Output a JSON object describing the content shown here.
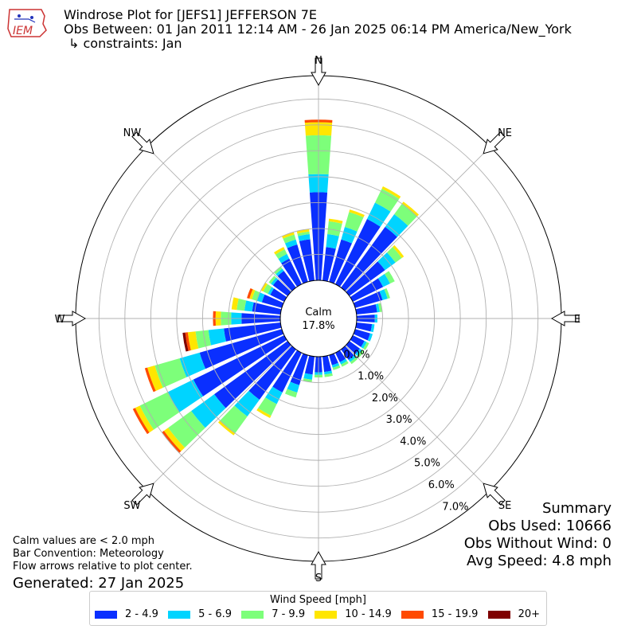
{
  "header": {
    "title": "Windrose Plot for [JEFS1] JEFFERSON 7E",
    "period": "Obs Between: 01 Jan 2011 12:14 AM - 26 Jan 2025 06:14 PM America/New_York",
    "constraints": "↳ constraints: Jan"
  },
  "logo": {
    "text": "IEM",
    "icon": "iem-logo-icon"
  },
  "summary": {
    "title": "Summary",
    "obs_used": "Obs Used: 10666",
    "obs_without_wind": "Obs Without Wind: 0",
    "avg_speed": "Avg Speed: 4.8 mph"
  },
  "notes": {
    "calm_note": "Calm values are < 2.0 mph",
    "bar_convention": "Bar Convention: Meteorology",
    "flow_arrows": "Flow arrows relative to plot center.",
    "generated": "Generated: 27 Jan 2025"
  },
  "legend": {
    "title": "Wind Speed [mph]",
    "items": [
      {
        "label": "2 - 4.9",
        "color": "#0a2fff"
      },
      {
        "label": "5 - 6.9",
        "color": "#00d4ff"
      },
      {
        "label": "7 - 9.9",
        "color": "#7dff7a"
      },
      {
        "label": "10 - 14.9",
        "color": "#ffe600"
      },
      {
        "label": "15 - 19.9",
        "color": "#ff4a00"
      },
      {
        "label": "20+",
        "color": "#7f0000"
      }
    ]
  },
  "chart_data": {
    "type": "windrose",
    "calm_label": "Calm",
    "calm_value": "17.8%",
    "direction_labels": [
      "N",
      "NE",
      "E",
      "SE",
      "S",
      "SW",
      "W",
      "NW"
    ],
    "radial_ticks": [
      "0.0%",
      "1.0%",
      "2.0%",
      "3.0%",
      "4.0%",
      "5.0%",
      "6.0%",
      "7.0%"
    ],
    "rmax": 7.9,
    "bins": [
      "2 - 4.9",
      "5 - 6.9",
      "7 - 9.9",
      "10 - 14.9",
      "15 - 19.9",
      "20+"
    ],
    "bin_colors": [
      "#0a2fff",
      "#00d4ff",
      "#7dff7a",
      "#ffe600",
      "#ff4a00",
      "#7f0000"
    ],
    "directions_deg": [
      0,
      10,
      20,
      30,
      40,
      50,
      60,
      70,
      80,
      90,
      100,
      110,
      120,
      130,
      140,
      150,
      160,
      170,
      180,
      190,
      200,
      210,
      220,
      230,
      240,
      250,
      260,
      270,
      280,
      290,
      300,
      310,
      320,
      330,
      340,
      350
    ],
    "values": [
      [
        3.4,
        0.7,
        1.5,
        0.5,
        0.1,
        0.0
      ],
      [
        1.3,
        0.5,
        0.5,
        0.1,
        0.0,
        0.0
      ],
      [
        1.7,
        0.5,
        0.6,
        0.1,
        0.0,
        0.0
      ],
      [
        2.8,
        0.7,
        0.6,
        0.1,
        0.0,
        0.0
      ],
      [
        2.9,
        0.6,
        0.5,
        0.1,
        0.0,
        0.0
      ],
      [
        1.7,
        0.5,
        0.3,
        0.1,
        0.0,
        0.0
      ],
      [
        1.3,
        0.3,
        0.2,
        0.0,
        0.0,
        0.0
      ],
      [
        1.1,
        0.2,
        0.1,
        0.0,
        0.0,
        0.0
      ],
      [
        0.8,
        0.1,
        0.1,
        0.0,
        0.0,
        0.0
      ],
      [
        0.7,
        0.1,
        0.0,
        0.0,
        0.0,
        0.0
      ],
      [
        0.6,
        0.1,
        0.0,
        0.0,
        0.0,
        0.0
      ],
      [
        0.6,
        0.1,
        0.0,
        0.0,
        0.0,
        0.0
      ],
      [
        0.5,
        0.1,
        0.1,
        0.0,
        0.0,
        0.0
      ],
      [
        0.5,
        0.1,
        0.1,
        0.0,
        0.0,
        0.0
      ],
      [
        0.5,
        0.1,
        0.1,
        0.0,
        0.0,
        0.0
      ],
      [
        0.4,
        0.1,
        0.1,
        0.0,
        0.0,
        0.0
      ],
      [
        0.4,
        0.1,
        0.1,
        0.0,
        0.0,
        0.0
      ],
      [
        0.6,
        0.1,
        0.1,
        0.0,
        0.0,
        0.0
      ],
      [
        0.6,
        0.1,
        0.1,
        0.0,
        0.0,
        0.0
      ],
      [
        0.7,
        0.2,
        0.1,
        0.0,
        0.0,
        0.0
      ],
      [
        1.2,
        0.3,
        0.2,
        0.0,
        0.0,
        0.0
      ],
      [
        1.7,
        0.5,
        0.5,
        0.1,
        0.0,
        0.0
      ],
      [
        2.4,
        0.8,
        0.8,
        0.1,
        0.0,
        0.0
      ],
      [
        3.5,
        1.1,
        1.1,
        0.2,
        0.1,
        0.0
      ],
      [
        3.9,
        1.1,
        1.2,
        0.2,
        0.1,
        0.0
      ],
      [
        3.3,
        0.8,
        1.0,
        0.3,
        0.1,
        0.0
      ],
      [
        2.2,
        0.6,
        0.5,
        0.3,
        0.1,
        0.1
      ],
      [
        1.5,
        0.4,
        0.4,
        0.2,
        0.1,
        0.0
      ],
      [
        1.1,
        0.3,
        0.3,
        0.2,
        0.0,
        0.0
      ],
      [
        0.8,
        0.2,
        0.2,
        0.1,
        0.1,
        0.0
      ],
      [
        0.6,
        0.1,
        0.2,
        0.1,
        0.0,
        0.0
      ],
      [
        0.7,
        0.1,
        0.1,
        0.0,
        0.0,
        0.0
      ],
      [
        0.8,
        0.1,
        0.1,
        0.0,
        0.0,
        0.0
      ],
      [
        1.1,
        0.2,
        0.2,
        0.1,
        0.0,
        0.0
      ],
      [
        1.5,
        0.2,
        0.2,
        0.1,
        0.0,
        0.0
      ],
      [
        1.6,
        0.2,
        0.1,
        0.1,
        0.0,
        0.0
      ]
    ],
    "grid": true
  }
}
